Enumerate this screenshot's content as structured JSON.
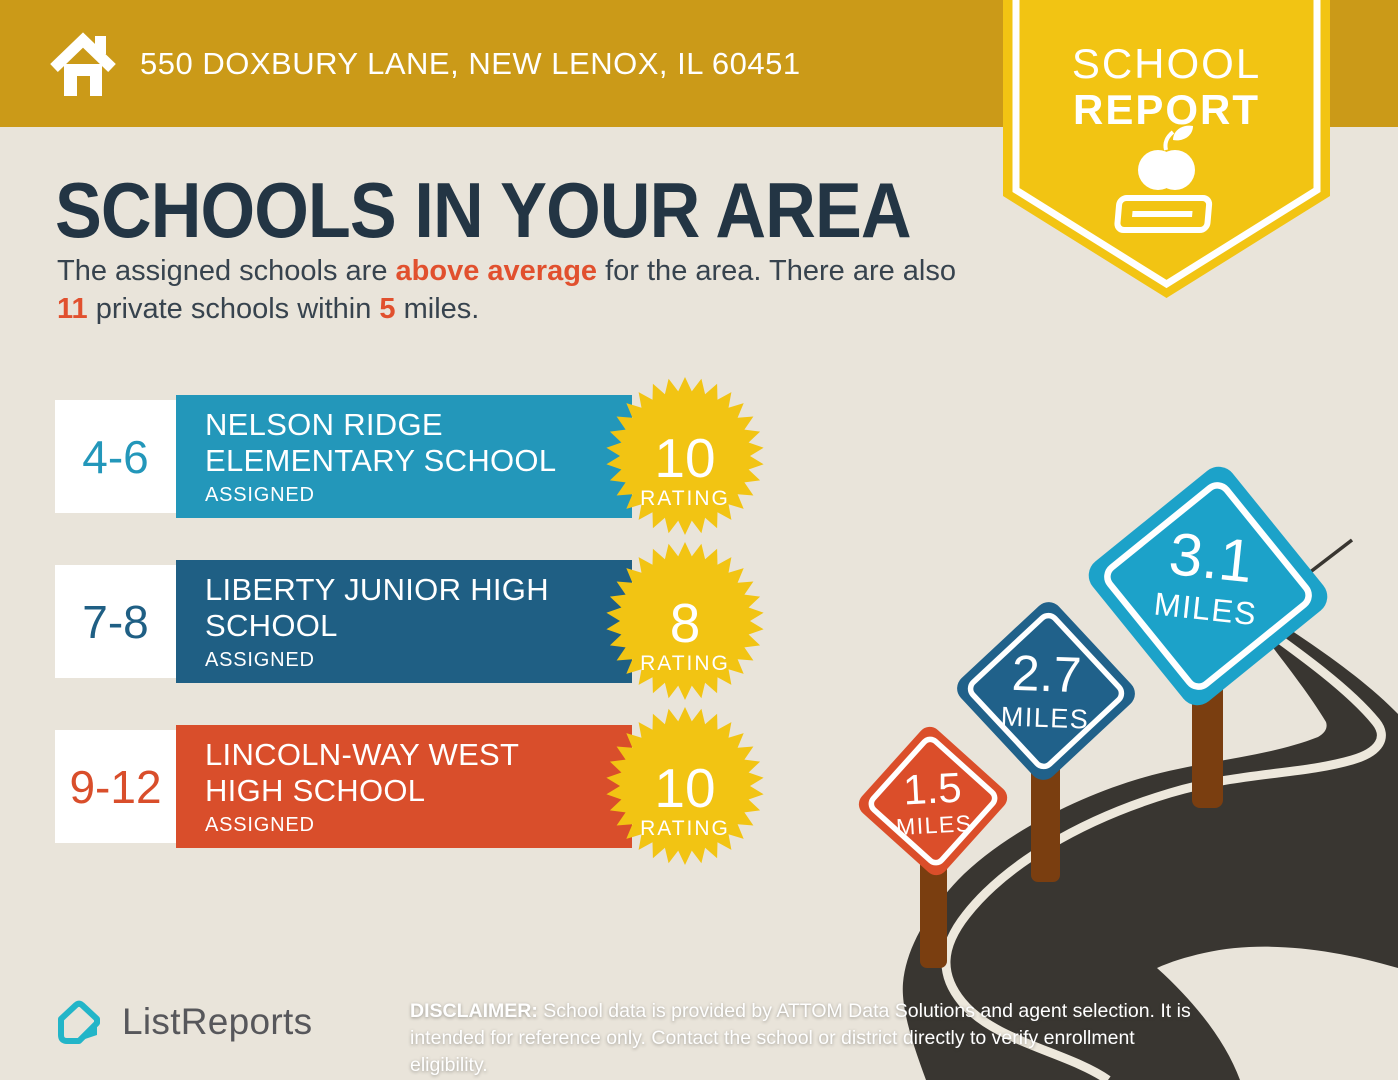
{
  "colors": {
    "header_gold": "#CB9A18",
    "badge_yellow": "#F2C413",
    "starburst_yellow": "#F2C413",
    "title_navy": "#233544",
    "body_text": "#37434E",
    "accent_orange": "#E1502E",
    "background_beige": "#E9E4DA",
    "road_charcoal": "#393631",
    "road_line": "#EDE8DC",
    "post_brown": "#7A3E10",
    "logo_teal": "#23B5C8",
    "logo_text_gray": "#57575B"
  },
  "header": {
    "address": "550 DOXBURY LANE, NEW LENOX, IL 60451",
    "icon": "home-icon"
  },
  "badge": {
    "line1": "SCHOOL",
    "line2": "REPORT",
    "icon": "apple-on-book-icon"
  },
  "main": {
    "title": "SCHOOLS IN YOUR AREA",
    "intro_segments": [
      {
        "text": "The assigned schools are ",
        "accent": false
      },
      {
        "text": "above average",
        "accent": true
      },
      {
        "text": " for the area. There are also ",
        "accent": false
      },
      {
        "text": "11",
        "accent": true
      },
      {
        "text": " private schools within ",
        "accent": false
      },
      {
        "text": "5",
        "accent": true
      },
      {
        "text": " miles.",
        "accent": false
      }
    ]
  },
  "schools": [
    {
      "grades": "4-6",
      "name": "NELSON RIDGE\nELEMENTARY SCHOOL",
      "status": "ASSIGNED",
      "rating": "10",
      "rating_label": "RATING",
      "color": "#2397BA"
    },
    {
      "grades": "7-8",
      "name": "LIBERTY JUNIOR HIGH\nSCHOOL",
      "status": "ASSIGNED",
      "rating": "8",
      "rating_label": "RATING",
      "color": "#1F5F84"
    },
    {
      "grades": "9-12",
      "name": "LINCOLN-WAY WEST\nHIGH SCHOOL",
      "status": "ASSIGNED",
      "rating": "10",
      "rating_label": "RATING",
      "color": "#D94E2B"
    }
  ],
  "distance_signs": [
    {
      "distance": "1.5",
      "unit": "MILES",
      "color": "#DB4E2A"
    },
    {
      "distance": "2.7",
      "unit": "MILES",
      "color": "#20618A"
    },
    {
      "distance": "3.1",
      "unit": "MILES",
      "color": "#1CA2C9"
    }
  ],
  "footer": {
    "logo_text": "ListReports",
    "disclaimer_label": "DISCLAIMER:",
    "disclaimer_text": " School data is provided by ATTOM Data Solutions and agent selection. It is intended for reference only. Contact the school or district directly to verify enrollment eligibility."
  }
}
